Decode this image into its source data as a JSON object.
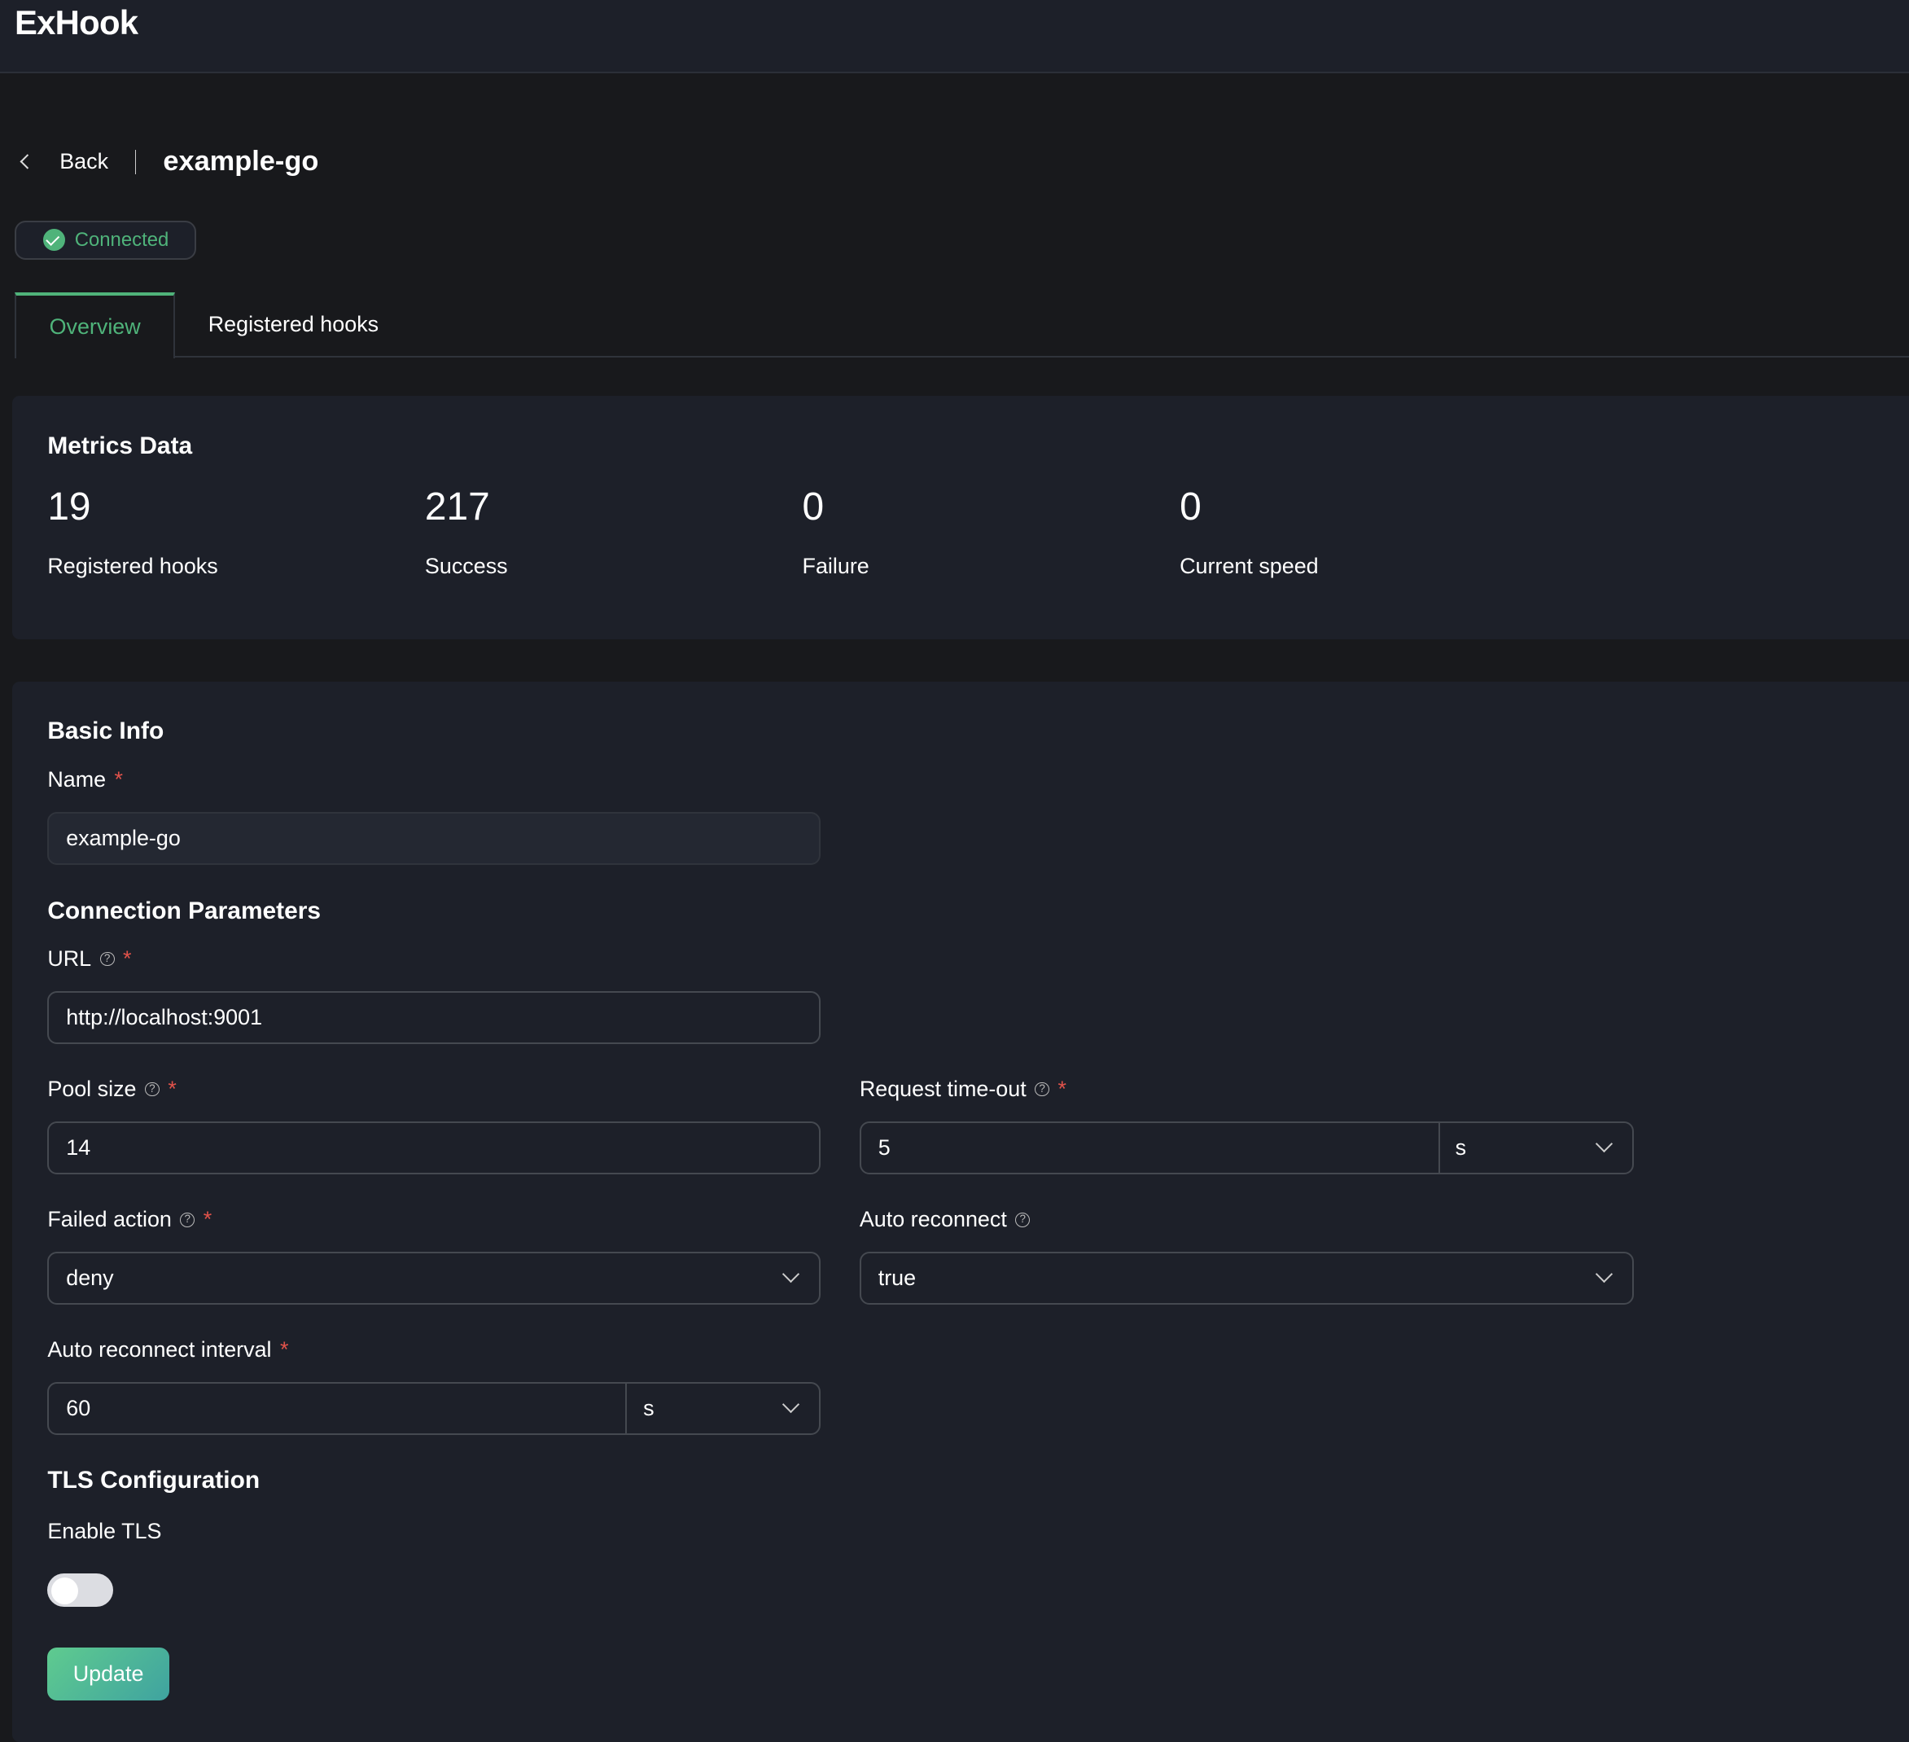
{
  "header": {
    "title": "ExHook"
  },
  "breadcrumb": {
    "back_label": "Back",
    "title": "example-go"
  },
  "status": {
    "label": "Connected",
    "color": "#4fb37a"
  },
  "tabs": [
    {
      "label": "Overview",
      "active": true
    },
    {
      "label": "Registered hooks",
      "active": false
    }
  ],
  "metrics": {
    "title": "Metrics Data",
    "items": [
      {
        "value": "19",
        "label": "Registered hooks"
      },
      {
        "value": "217",
        "label": "Success"
      },
      {
        "value": "0",
        "label": "Failure"
      },
      {
        "value": "0",
        "label": "Current speed"
      }
    ]
  },
  "form": {
    "basic_info_title": "Basic Info",
    "name": {
      "label": "Name",
      "value": "example-go"
    },
    "connection_title": "Connection Parameters",
    "url": {
      "label": "URL",
      "value": "http://localhost:9001"
    },
    "pool_size": {
      "label": "Pool size",
      "value": "14"
    },
    "request_timeout": {
      "label": "Request time-out",
      "value": "5",
      "unit": "s"
    },
    "failed_action": {
      "label": "Failed action",
      "value": "deny"
    },
    "auto_reconnect": {
      "label": "Auto reconnect",
      "value": "true"
    },
    "auto_reconnect_interval": {
      "label": "Auto reconnect interval",
      "value": "60",
      "unit": "s"
    },
    "tls_title": "TLS Configuration",
    "enable_tls": {
      "label": "Enable TLS",
      "enabled": false
    },
    "required_mark": "*",
    "help_glyph": "?",
    "update_label": "Update"
  }
}
